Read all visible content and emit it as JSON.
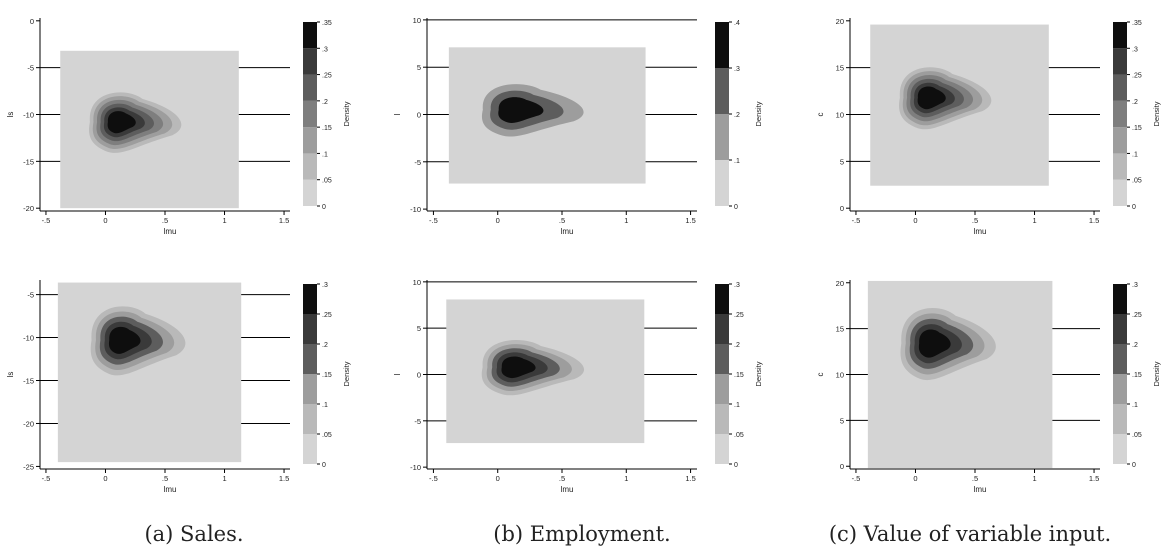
{
  "captions": [
    "(a) Sales.",
    "(b) Employment.",
    "(c) Value of variable input."
  ],
  "colors": {
    "levels": [
      "#d4d4d4",
      "#b9b9b9",
      "#9d9d9d",
      "#7e7e7e",
      "#5d5d5d",
      "#3a3a3a",
      "#0e0e0e"
    ],
    "background": "#d3d3d3",
    "axis": "#000000"
  },
  "chart_data": [
    {
      "type": "heatmap",
      "panel": "a",
      "row": 1,
      "xlabel": "lmu",
      "ylabel": "ls",
      "xlim": [
        -0.55,
        1.55
      ],
      "ylim": [
        -20.3,
        0.3
      ],
      "xticks": [
        "-.5",
        "0",
        ".5",
        "1",
        "1.5"
      ],
      "xtick_values": [
        -0.5,
        0,
        0.5,
        1,
        1.5
      ],
      "yticks": [
        "-20",
        "-15",
        "-10",
        "-5",
        "0"
      ],
      "ytick_values": [
        -20,
        -15,
        -10,
        -5,
        0
      ],
      "hlines": [
        -5,
        -10,
        -15
      ],
      "surface": {
        "x": [
          -0.38,
          1.12
        ],
        "y": [
          -20,
          -3.2
        ]
      },
      "peak": {
        "x": 0.1,
        "y": -10.8
      },
      "density_label": "Density",
      "colorbar_ticks": [
        "0",
        ".05",
        ".1",
        ".15",
        ".2",
        ".25",
        ".3",
        ".35"
      ],
      "colorbar_values": [
        0,
        0.05,
        0.1,
        0.15,
        0.2,
        0.25,
        0.3,
        0.35
      ]
    },
    {
      "type": "heatmap",
      "panel": "b",
      "row": 1,
      "xlabel": "lmu",
      "ylabel": "l",
      "xlim": [
        -0.55,
        1.55
      ],
      "ylim": [
        -10.2,
        10.2
      ],
      "xticks": [
        "-.5",
        "0",
        ".5",
        "1",
        "1.5"
      ],
      "xtick_values": [
        -0.5,
        0,
        0.5,
        1,
        1.5
      ],
      "yticks": [
        "-10",
        "-5",
        "0",
        "5",
        "10"
      ],
      "ytick_values": [
        -10,
        -5,
        0,
        5,
        10
      ],
      "hlines": [
        10,
        5,
        0,
        -5
      ],
      "surface": {
        "x": [
          -0.38,
          1.15
        ],
        "y": [
          -7.3,
          7.1
        ]
      },
      "peak": {
        "x": 0.12,
        "y": 0.5
      },
      "density_label": "Density",
      "colorbar_ticks": [
        "0",
        ".1",
        ".2",
        ".3",
        ".4"
      ],
      "colorbar_values": [
        0,
        0.1,
        0.2,
        0.3,
        0.4
      ]
    },
    {
      "type": "heatmap",
      "panel": "c",
      "row": 1,
      "xlabel": "lmu",
      "ylabel": "c",
      "xlim": [
        -0.55,
        1.55
      ],
      "ylim": [
        -0.3,
        20.3
      ],
      "xticks": [
        "-.5",
        "0",
        ".5",
        "1",
        "1.5"
      ],
      "xtick_values": [
        -0.5,
        0,
        0.5,
        1,
        1.5
      ],
      "yticks": [
        "0",
        "5",
        "10",
        "15",
        "20"
      ],
      "ytick_values": [
        0,
        5,
        10,
        15,
        20
      ],
      "hlines": [
        15,
        10,
        5
      ],
      "surface": {
        "x": [
          -0.38,
          1.12
        ],
        "y": [
          2.4,
          19.6
        ]
      },
      "peak": {
        "x": 0.1,
        "y": 11.8
      },
      "density_label": "Density",
      "colorbar_ticks": [
        "0",
        ".05",
        ".1",
        ".15",
        ".2",
        ".25",
        ".3",
        ".35"
      ],
      "colorbar_values": [
        0,
        0.05,
        0.1,
        0.15,
        0.2,
        0.25,
        0.3,
        0.35
      ]
    },
    {
      "type": "heatmap",
      "panel": "a",
      "row": 2,
      "xlabel": "lmu",
      "ylabel": "ls",
      "xlim": [
        -0.55,
        1.55
      ],
      "ylim": [
        -25.3,
        -3.3
      ],
      "xticks": [
        "-.5",
        "0",
        ".5",
        "1",
        "1.5"
      ],
      "xtick_values": [
        -0.5,
        0,
        0.5,
        1,
        1.5
      ],
      "yticks": [
        "-25",
        "-20",
        "-15",
        "-10",
        "-5"
      ],
      "ytick_values": [
        -25,
        -20,
        -15,
        -10,
        -5
      ],
      "hlines": [
        -5,
        -10,
        -15,
        -20
      ],
      "surface": {
        "x": [
          -0.4,
          1.14
        ],
        "y": [
          -24.5,
          -3.6
        ]
      },
      "peak": {
        "x": 0.12,
        "y": -10.3
      },
      "density_label": "Density",
      "colorbar_ticks": [
        "0",
        ".05",
        ".1",
        ".15",
        ".2",
        ".25",
        ".3"
      ],
      "colorbar_values": [
        0,
        0.05,
        0.1,
        0.15,
        0.2,
        0.25,
        0.3
      ]
    },
    {
      "type": "heatmap",
      "panel": "b",
      "row": 2,
      "xlabel": "lmu",
      "ylabel": "l",
      "xlim": [
        -0.55,
        1.55
      ],
      "ylim": [
        -10.2,
        10.2
      ],
      "xticks": [
        "-.5",
        "0",
        ".5",
        "1",
        "1.5"
      ],
      "xtick_values": [
        -0.5,
        0,
        0.5,
        1,
        1.5
      ],
      "yticks": [
        "-10",
        "-5",
        "0",
        "5",
        "10"
      ],
      "ytick_values": [
        -10,
        -5,
        0,
        5,
        10
      ],
      "hlines": [
        10,
        5,
        0,
        -5
      ],
      "surface": {
        "x": [
          -0.4,
          1.14
        ],
        "y": [
          -7.4,
          8.1
        ]
      },
      "peak": {
        "x": 0.12,
        "y": 0.8
      },
      "density_label": "Density",
      "colorbar_ticks": [
        "0",
        ".05",
        ".1",
        ".15",
        ".2",
        ".25",
        ".3"
      ],
      "colorbar_values": [
        0,
        0.05,
        0.1,
        0.15,
        0.2,
        0.25,
        0.3
      ]
    },
    {
      "type": "heatmap",
      "panel": "c",
      "row": 2,
      "xlabel": "lmu",
      "ylabel": "c",
      "xlim": [
        -0.55,
        1.55
      ],
      "ylim": [
        -0.3,
        20.3
      ],
      "xticks": [
        "-.5",
        "0",
        ".5",
        "1",
        "1.5"
      ],
      "xtick_values": [
        -0.5,
        0,
        0.5,
        1,
        1.5
      ],
      "yticks": [
        "0",
        "5",
        "10",
        "15",
        "20"
      ],
      "ytick_values": [
        0,
        5,
        10,
        15,
        20
      ],
      "hlines": [
        15,
        10,
        5
      ],
      "surface": {
        "x": [
          -0.4,
          1.15
        ],
        "y": [
          -0.2,
          20.2
        ]
      },
      "peak": {
        "x": 0.12,
        "y": 13.4
      },
      "density_label": "Density",
      "colorbar_ticks": [
        "0",
        ".05",
        ".1",
        ".15",
        ".2",
        ".25",
        ".3"
      ],
      "colorbar_values": [
        0,
        0.05,
        0.1,
        0.15,
        0.2,
        0.25,
        0.3
      ]
    }
  ]
}
